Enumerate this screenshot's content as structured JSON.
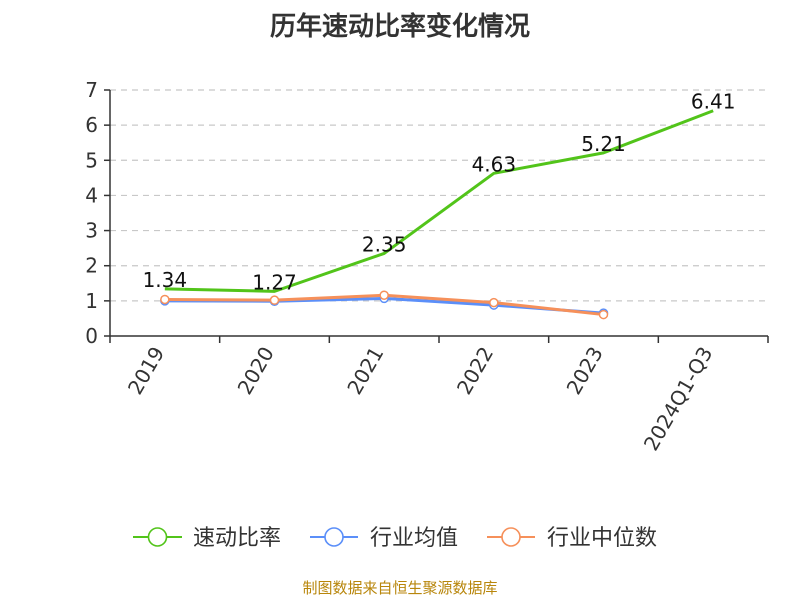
{
  "chart_data": {
    "type": "line",
    "title": "历年速动比率变化情况",
    "categories": [
      "2019",
      "2020",
      "2021",
      "2022",
      "2023",
      "2024Q1-Q3"
    ],
    "ylim": [
      0,
      7
    ],
    "yticks": [
      0,
      1,
      2,
      3,
      4,
      5,
      6,
      7
    ],
    "grid": true,
    "legend_position": "bottom",
    "series": [
      {
        "name": "速动比率",
        "color": "#52c41a",
        "values": [
          1.34,
          1.27,
          2.35,
          4.63,
          5.21,
          6.41
        ],
        "labels": [
          "1.34",
          "1.27",
          "2.35",
          "4.63",
          "5.21",
          "6.41"
        ]
      },
      {
        "name": "行业均值",
        "color": "#5b8ff9",
        "values": [
          1.0,
          0.99,
          1.07,
          0.88,
          0.65,
          null
        ]
      },
      {
        "name": "行业中位数",
        "color": "#f6905a",
        "values": [
          1.04,
          1.02,
          1.16,
          0.95,
          0.61,
          null
        ]
      }
    ]
  },
  "source_note": "制图数据来自恒生聚源数据库"
}
